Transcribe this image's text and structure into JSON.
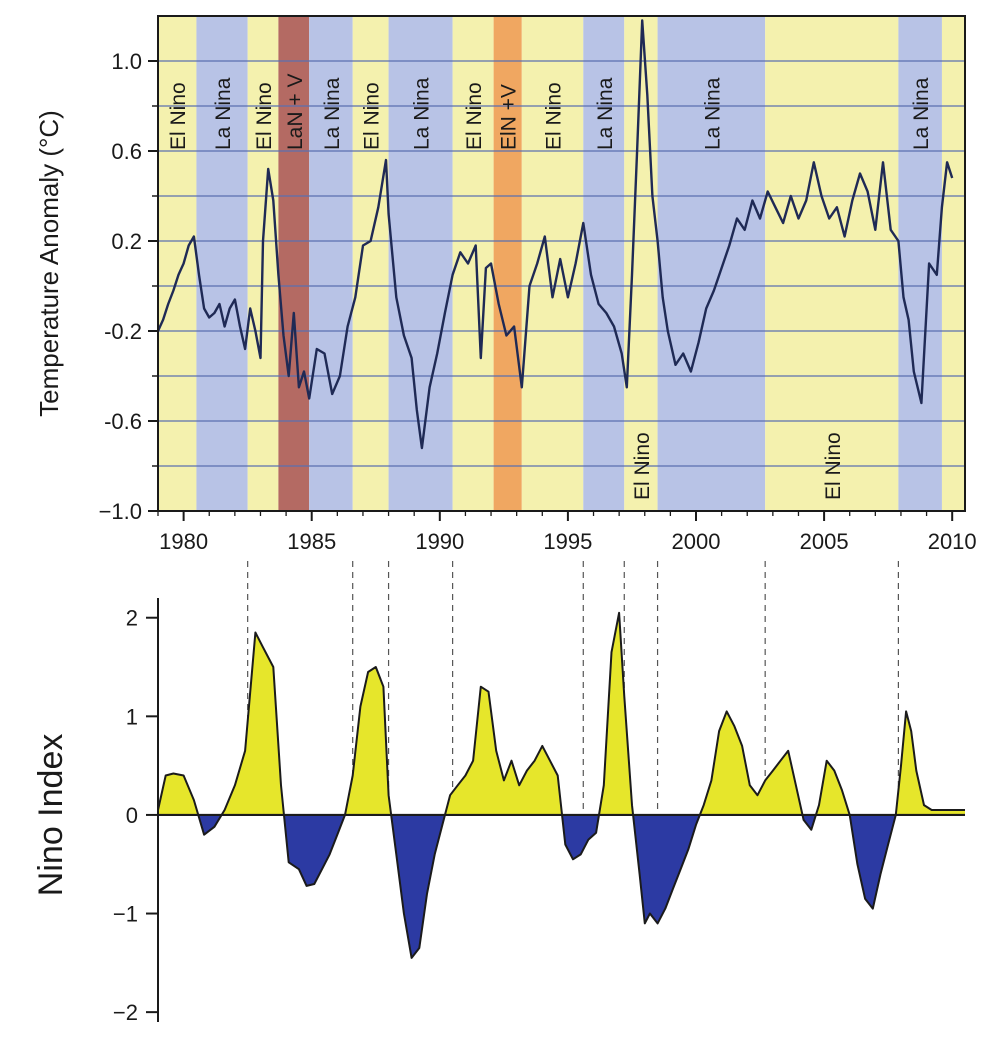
{
  "chart_data": [
    {
      "type": "line",
      "ylabel": "Temperature Anomaly (°C)",
      "xlim": [
        1979,
        2010.5
      ],
      "ylim": [
        -1.0,
        1.2
      ],
      "yticks": [
        -1.0,
        -0.6,
        -0.2,
        0.2,
        0.6,
        1.0
      ],
      "ytick_labels": [
        "−1.0",
        "-0.6",
        "-0.2",
        "0.2",
        "0.6",
        "1.0"
      ],
      "xticks": [
        1980,
        1985,
        1990,
        1995,
        2000,
        2005,
        2010
      ],
      "xtick_labels": [
        "1980",
        "1985",
        "1990",
        "1995",
        "2000",
        "2005",
        "2010"
      ],
      "grid": true,
      "colors": {
        "elnino_band": "#f4f1ae",
        "lanina_band": "#b8c3e6",
        "lan_v_band": "#b46a63",
        "eln_v_band": "#f0a761",
        "line_warm": "#3a3a22",
        "line_cold": "#1f2a55",
        "gridline": "#5a6fb0"
      },
      "periods": [
        {
          "label": "El Nino",
          "kind": "elnino",
          "start": 1979.0,
          "end": 1980.5
        },
        {
          "label": "La Nina",
          "kind": "lanina",
          "start": 1980.5,
          "end": 1982.5
        },
        {
          "label": "El Nino",
          "kind": "elnino",
          "start": 1982.5,
          "end": 1983.7
        },
        {
          "label": "LaN + V",
          "kind": "lan_v",
          "start": 1983.7,
          "end": 1984.9
        },
        {
          "label": "La Nina",
          "kind": "lanina",
          "start": 1984.9,
          "end": 1986.6
        },
        {
          "label": "El Nino",
          "kind": "elnino",
          "start": 1986.6,
          "end": 1988.0
        },
        {
          "label": "La Nina",
          "kind": "lanina",
          "start": 1988.0,
          "end": 1990.5
        },
        {
          "label": "El Nino",
          "kind": "elnino",
          "start": 1990.5,
          "end": 1992.1
        },
        {
          "label": "ElN +V",
          "kind": "eln_v",
          "start": 1992.1,
          "end": 1993.2
        },
        {
          "label": "El Nino",
          "kind": "elnino",
          "start": 1993.2,
          "end": 1995.6
        },
        {
          "label": "La Nina",
          "kind": "lanina",
          "start": 1995.6,
          "end": 1997.2
        },
        {
          "label": "El Nino",
          "kind": "elnino",
          "start": 1997.2,
          "end": 1998.5
        },
        {
          "label": "La Nina",
          "kind": "lanina",
          "start": 1998.5,
          "end": 2002.7
        },
        {
          "label": "El Nino",
          "kind": "elnino",
          "start": 2002.7,
          "end": 2007.9
        },
        {
          "label": "La Nina",
          "kind": "lanina",
          "start": 2007.9,
          "end": 2009.6
        },
        {
          "label": "",
          "kind": "elnino",
          "start": 2009.6,
          "end": 2010.5
        }
      ],
      "series": [
        {
          "x": [
            1979.0,
            1979.2,
            1979.4,
            1979.6,
            1979.8,
            1980.0,
            1980.2,
            1980.4,
            1980.6,
            1980.8,
            1981.0,
            1981.2,
            1981.4,
            1981.6,
            1981.8,
            1982.0,
            1982.2,
            1982.4,
            1982.6,
            1982.8,
            1983.0,
            1983.1,
            1983.3,
            1983.5,
            1983.7,
            1983.9,
            1984.1,
            1984.3,
            1984.5,
            1984.7,
            1984.9,
            1985.2,
            1985.5,
            1985.8,
            1986.1,
            1986.4,
            1986.7,
            1987.0,
            1987.3,
            1987.6,
            1987.9,
            1988.0,
            1988.3,
            1988.6,
            1988.9,
            1989.1,
            1989.3,
            1989.6,
            1989.9,
            1990.2,
            1990.5,
            1990.8,
            1991.1,
            1991.4,
            1991.6,
            1991.8,
            1992.0,
            1992.3,
            1992.6,
            1992.9,
            1993.2,
            1993.5,
            1993.8,
            1994.1,
            1994.4,
            1994.7,
            1995.0,
            1995.3,
            1995.6,
            1995.9,
            1996.2,
            1996.5,
            1996.8,
            1997.1,
            1997.3,
            1997.5,
            1997.7,
            1997.9,
            1998.1,
            1998.3,
            1998.5,
            1998.7,
            1998.9,
            1999.2,
            1999.5,
            1999.8,
            2000.1,
            2000.4,
            2000.7,
            2001.0,
            2001.3,
            2001.6,
            2001.9,
            2002.2,
            2002.5,
            2002.8,
            2003.1,
            2003.4,
            2003.7,
            2004.0,
            2004.3,
            2004.6,
            2004.9,
            2005.2,
            2005.5,
            2005.8,
            2006.1,
            2006.4,
            2006.7,
            2007.0,
            2007.3,
            2007.6,
            2007.9,
            2008.1,
            2008.3,
            2008.5,
            2008.8,
            2009.1,
            2009.4,
            2009.6,
            2009.8,
            2010.0
          ],
          "y": [
            -0.2,
            -0.15,
            -0.08,
            -0.02,
            0.05,
            0.1,
            0.18,
            0.22,
            0.05,
            -0.1,
            -0.14,
            -0.12,
            -0.08,
            -0.18,
            -0.1,
            -0.06,
            -0.18,
            -0.28,
            -0.1,
            -0.2,
            -0.32,
            0.2,
            0.52,
            0.38,
            0.05,
            -0.22,
            -0.4,
            -0.12,
            -0.45,
            -0.38,
            -0.5,
            -0.28,
            -0.3,
            -0.48,
            -0.4,
            -0.18,
            -0.05,
            0.18,
            0.2,
            0.35,
            0.56,
            0.32,
            -0.05,
            -0.22,
            -0.32,
            -0.55,
            -0.72,
            -0.45,
            -0.3,
            -0.12,
            0.05,
            0.15,
            0.1,
            0.18,
            -0.32,
            0.08,
            0.1,
            -0.08,
            -0.22,
            -0.18,
            -0.45,
            0.0,
            0.1,
            0.22,
            -0.05,
            0.12,
            -0.05,
            0.1,
            0.28,
            0.05,
            -0.08,
            -0.12,
            -0.18,
            -0.3,
            -0.45,
            0.05,
            0.6,
            1.18,
            0.85,
            0.4,
            0.2,
            -0.05,
            -0.2,
            -0.35,
            -0.3,
            -0.38,
            -0.25,
            -0.1,
            -0.02,
            0.08,
            0.18,
            0.3,
            0.25,
            0.38,
            0.3,
            0.42,
            0.35,
            0.28,
            0.4,
            0.3,
            0.38,
            0.55,
            0.4,
            0.3,
            0.35,
            0.22,
            0.38,
            0.5,
            0.42,
            0.25,
            0.55,
            0.25,
            0.2,
            -0.05,
            -0.15,
            -0.38,
            -0.52,
            0.1,
            0.05,
            0.35,
            0.55,
            0.48
          ]
        }
      ]
    },
    {
      "type": "area",
      "ylabel": "Nino Index",
      "xlim": [
        1979,
        2010.5
      ],
      "ylim": [
        -2.1,
        2.2
      ],
      "yticks": [
        -2,
        -1,
        0,
        1,
        2
      ],
      "ytick_labels": [
        "−2",
        "−1",
        "0",
        "1",
        "2"
      ],
      "grid": false,
      "colors": {
        "positive_fill": "#e6e62b",
        "negative_fill": "#2c3aa3",
        "outline": "#1b1b1b"
      },
      "series": [
        {
          "x": [
            1979.0,
            1979.3,
            1979.6,
            1980.0,
            1980.4,
            1980.8,
            1981.2,
            1981.6,
            1982.0,
            1982.4,
            1982.8,
            1983.1,
            1983.5,
            1983.8,
            1984.1,
            1984.5,
            1984.8,
            1985.1,
            1985.4,
            1985.7,
            1986.0,
            1986.3,
            1986.6,
            1986.9,
            1987.2,
            1987.5,
            1987.8,
            1988.0,
            1988.3,
            1988.6,
            1988.9,
            1989.2,
            1989.5,
            1989.8,
            1990.1,
            1990.4,
            1990.7,
            1991.0,
            1991.3,
            1991.6,
            1991.9,
            1992.2,
            1992.5,
            1992.8,
            1993.1,
            1993.4,
            1993.7,
            1994.0,
            1994.3,
            1994.6,
            1994.9,
            1995.2,
            1995.5,
            1995.8,
            1996.1,
            1996.4,
            1996.7,
            1997.0,
            1997.2,
            1997.5,
            1997.8,
            1998.0,
            1998.2,
            1998.5,
            1998.8,
            1999.1,
            1999.4,
            1999.7,
            2000.0,
            2000.3,
            2000.6,
            2000.9,
            2001.2,
            2001.5,
            2001.8,
            2002.1,
            2002.4,
            2002.7,
            2003.0,
            2003.3,
            2003.6,
            2003.9,
            2004.2,
            2004.5,
            2004.8,
            2005.1,
            2005.4,
            2005.7,
            2006.0,
            2006.3,
            2006.6,
            2006.9,
            2007.2,
            2007.5,
            2007.8,
            2008.0,
            2008.2,
            2008.4,
            2008.6,
            2008.9,
            2009.2,
            2009.5,
            2009.8,
            2010.0,
            2010.3,
            2010.5
          ],
          "y": [
            0.05,
            0.4,
            0.42,
            0.4,
            0.15,
            -0.2,
            -0.12,
            0.05,
            0.3,
            0.65,
            1.85,
            1.7,
            1.5,
            0.3,
            -0.48,
            -0.55,
            -0.72,
            -0.7,
            -0.55,
            -0.4,
            -0.2,
            0.0,
            0.4,
            1.1,
            1.45,
            1.5,
            1.3,
            0.2,
            -0.4,
            -1.0,
            -1.45,
            -1.35,
            -0.8,
            -0.4,
            -0.1,
            0.2,
            0.3,
            0.4,
            0.55,
            1.3,
            1.25,
            0.65,
            0.35,
            0.55,
            0.3,
            0.45,
            0.55,
            0.7,
            0.55,
            0.4,
            -0.3,
            -0.45,
            -0.4,
            -0.25,
            -0.18,
            0.3,
            1.65,
            2.05,
            1.2,
            0.1,
            -0.6,
            -1.1,
            -1.0,
            -1.1,
            -0.95,
            -0.75,
            -0.55,
            -0.35,
            -0.1,
            0.1,
            0.35,
            0.85,
            1.05,
            0.9,
            0.7,
            0.3,
            0.2,
            0.35,
            0.45,
            0.55,
            0.65,
            0.3,
            -0.05,
            -0.15,
            0.1,
            0.55,
            0.45,
            0.25,
            0.0,
            -0.5,
            -0.85,
            -0.95,
            -0.6,
            -0.3,
            0.0,
            0.5,
            1.05,
            0.85,
            0.45,
            0.1,
            0.05,
            0.05,
            0.05,
            0.05,
            0.05,
            0.05
          ]
        }
      ]
    }
  ]
}
